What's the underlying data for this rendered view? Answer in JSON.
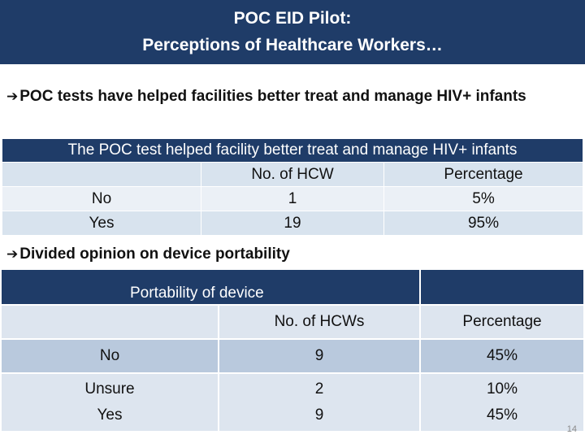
{
  "title": {
    "line1": "POC EID Pilot:",
    "line2": "Perceptions of Healthcare Workers…"
  },
  "bullets": [
    {
      "arrow": "➔",
      "text": "POC tests have helped facilities better treat and manage HIV+ infants"
    },
    {
      "arrow": "➔",
      "text": "Divided opinion on device portability"
    }
  ],
  "table1": {
    "title": "The POC test helped facility better treat  and manage HIV+ infants",
    "columns": [
      "",
      "No. of HCW",
      "Percentage"
    ],
    "rows": [
      {
        "label": "No",
        "count": "1",
        "pct": "5%"
      },
      {
        "label": "Yes",
        "count": "19",
        "pct": "95%"
      }
    ]
  },
  "table2": {
    "title": "Portability of device",
    "columns": [
      "",
      "No. of HCWs",
      "Percentage"
    ],
    "rows": [
      {
        "label": "No",
        "count": "9",
        "pct": "45%"
      },
      {
        "label1": "Unsure",
        "count1": "2",
        "pct1": "10%",
        "label2": "Yes",
        "count2": "9",
        "pct2": "45%"
      }
    ]
  },
  "page_number": "14",
  "colors": {
    "header": "#1f3c68",
    "row_light": "#dde5ef",
    "row_mid": "#b9c9dd"
  }
}
